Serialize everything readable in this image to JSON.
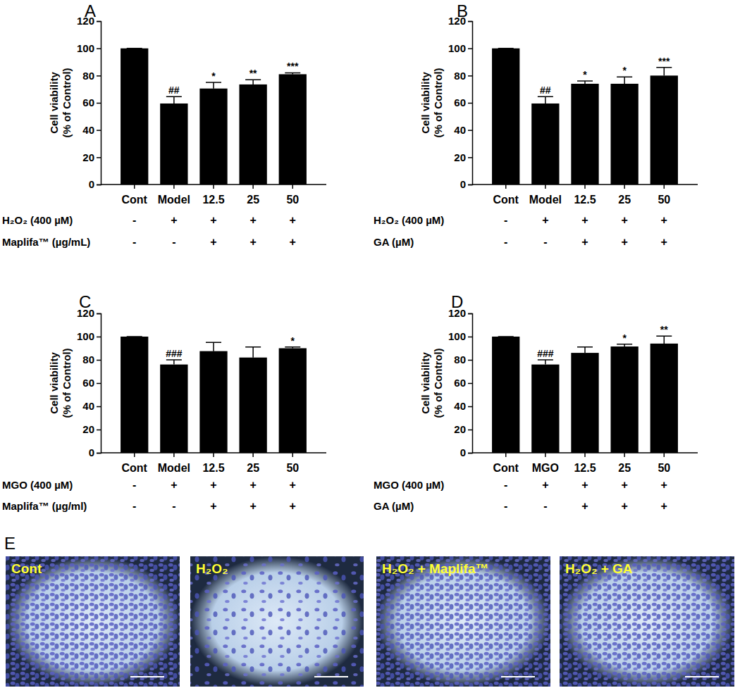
{
  "chart_data": [
    {
      "type": "bar",
      "title": "A",
      "ylabel": [
        "Cell viability",
        "(% of Control)"
      ],
      "categories": [
        "Cont",
        "Model",
        "12.5",
        "25",
        "50"
      ],
      "values": [
        100,
        59.5,
        70.5,
        73.5,
        81
      ],
      "errors": [
        0,
        5,
        4.5,
        3.5,
        1
      ],
      "annotations": [
        null,
        "##",
        "*",
        "**",
        "***"
      ],
      "conditions": [
        {
          "label": "H₂O₂ (400 µM)",
          "signs": [
            "-",
            "+",
            "+",
            "+",
            "+"
          ]
        },
        {
          "label": "Maplifa™ (µg/mL)",
          "signs": [
            "-",
            "-",
            "+",
            "+",
            "+"
          ]
        }
      ],
      "color": "#000000",
      "ylim": [
        0,
        120
      ],
      "yticks": [
        0,
        20,
        40,
        60,
        80,
        100,
        120
      ],
      "grid": false
    },
    {
      "type": "bar",
      "title": "B",
      "ylabel": [
        "Cell viability",
        "(% of Control)"
      ],
      "categories": [
        "Cont",
        "Model",
        "12.5",
        "25",
        "50"
      ],
      "values": [
        100,
        59.5,
        74,
        74,
        80
      ],
      "errors": [
        0,
        5,
        2,
        5,
        6
      ],
      "annotations": [
        null,
        "##",
        "*",
        "*",
        "***"
      ],
      "conditions": [
        {
          "label": "H₂O₂ (400 µM)",
          "signs": [
            "-",
            "+",
            "+",
            "+",
            "+"
          ]
        },
        {
          "label": "GA (µM)",
          "signs": [
            "-",
            "-",
            "+",
            "+",
            "+"
          ]
        }
      ],
      "color": "#000000",
      "ylim": [
        0,
        120
      ],
      "yticks": [
        0,
        20,
        40,
        60,
        80,
        100,
        120
      ],
      "grid": false
    },
    {
      "type": "bar",
      "title": "C",
      "ylabel": [
        "Cell viability",
        "(% of Control)"
      ],
      "categories": [
        "Cont",
        "Model",
        "12.5",
        "25",
        "50"
      ],
      "values": [
        100,
        76,
        87.5,
        82,
        90
      ],
      "errors": [
        0,
        4,
        7.5,
        9,
        1
      ],
      "annotations": [
        null,
        "###",
        null,
        null,
        "*"
      ],
      "conditions": [
        {
          "label": "MGO (400 µM)",
          "signs": [
            "-",
            "+",
            "+",
            "+",
            "+"
          ]
        },
        {
          "label": "Maplifa™ (µg/ml)",
          "signs": [
            "-",
            "-",
            "+",
            "+",
            "+"
          ]
        }
      ],
      "color": "#000000",
      "ylim": [
        0,
        120
      ],
      "yticks": [
        0,
        20,
        40,
        60,
        80,
        100,
        120
      ],
      "grid": false
    },
    {
      "type": "bar",
      "title": "D",
      "ylabel": [
        "Cell viability",
        "(% of Control)"
      ],
      "categories": [
        "Cont",
        "MGO",
        "12.5",
        "25",
        "50"
      ],
      "values": [
        100,
        76,
        86,
        91.5,
        94
      ],
      "errors": [
        0,
        4,
        5,
        2,
        6.5
      ],
      "annotations": [
        null,
        "###",
        null,
        "*",
        "**"
      ],
      "conditions": [
        {
          "label": "MGO (400 µM)",
          "signs": [
            "-",
            "+",
            "+",
            "+",
            "+"
          ]
        },
        {
          "label": "GA (µM)",
          "signs": [
            "-",
            "-",
            "+",
            "+",
            "+"
          ]
        }
      ],
      "color": "#000000",
      "ylim": [
        0,
        120
      ],
      "yticks": [
        0,
        20,
        40,
        60,
        80,
        100,
        120
      ],
      "grid": false
    }
  ],
  "images": {
    "panel": "E",
    "labels": [
      "Cont",
      "H₂O₂",
      "H₂O₂ + Maplifa™",
      "H₂O₂ + GA"
    ]
  }
}
